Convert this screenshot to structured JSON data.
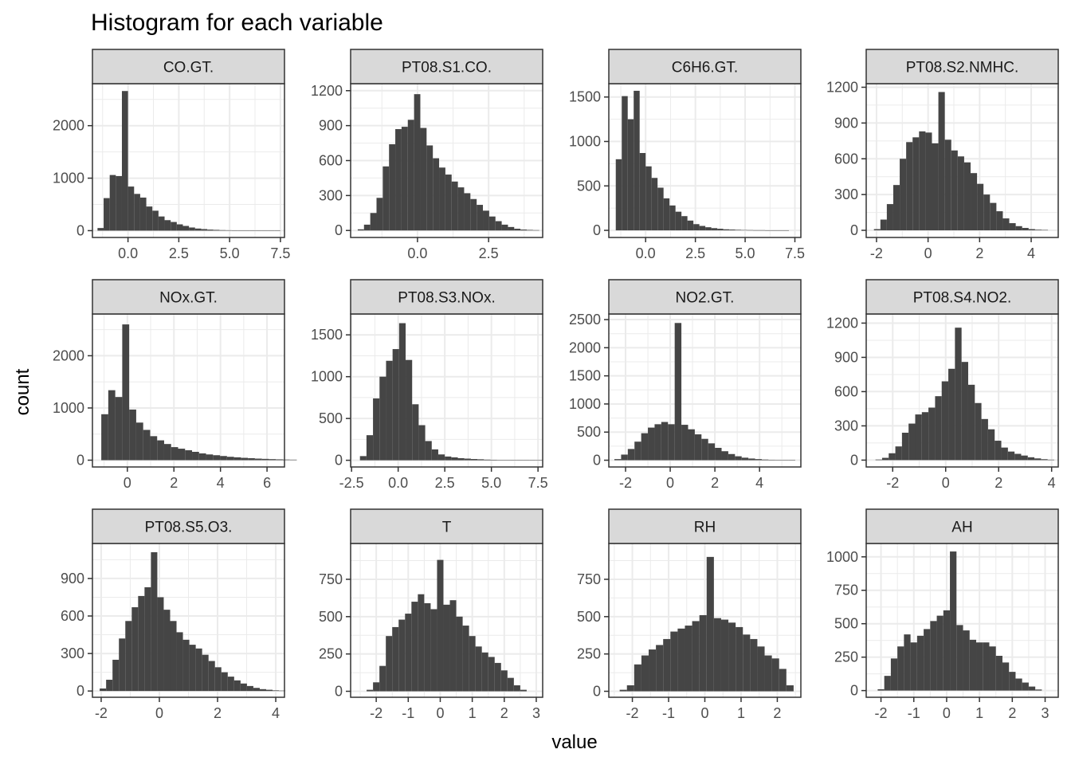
{
  "title": "Histogram for each variable",
  "xlabel": "value",
  "ylabel": "count",
  "chart_data": {
    "type": "histogram-facets",
    "ncol": 4,
    "bar_color": "#454545",
    "strip_fill": "#d9d9d9",
    "grid_color": "#ebebeb",
    "panel_border_color": "#333333",
    "panels": [
      {
        "name": "CO.GT.",
        "xlim": [
          -1.75,
          7.7
        ],
        "ylim": [
          -130,
          2800
        ],
        "xticks": [
          0,
          2.5,
          5,
          7.5
        ],
        "xtick_labels": [
          "0.0",
          "2.5",
          "5.0",
          "7.5"
        ],
        "yticks": [
          0,
          1000,
          2000
        ],
        "ytick_labels": [
          "0",
          "1000",
          "2000"
        ],
        "bin_start": -1.5,
        "binwidth": 0.3,
        "counts": [
          50,
          620,
          1060,
          1040,
          2660,
          840,
          700,
          630,
          460,
          380,
          270,
          200,
          165,
          120,
          90,
          60,
          40,
          30,
          20,
          15,
          10,
          8,
          6,
          5,
          4,
          3,
          2,
          2,
          1,
          1
        ]
      },
      {
        "name": "PT08.S1.CO.",
        "xlim": [
          -2.35,
          4.4
        ],
        "ylim": [
          -60,
          1260
        ],
        "xticks": [
          0,
          2.5
        ],
        "xtick_labels": [
          "0.0",
          "2.5"
        ],
        "yticks": [
          0,
          300,
          600,
          900,
          1200
        ],
        "ytick_labels": [
          "0",
          "300",
          "600",
          "900",
          "1200"
        ],
        "bin_start": -2.1,
        "binwidth": 0.22,
        "counts": [
          10,
          50,
          150,
          280,
          550,
          740,
          870,
          890,
          950,
          1170,
          880,
          730,
          620,
          540,
          480,
          420,
          370,
          320,
          270,
          220,
          170,
          120,
          80,
          50,
          30,
          15,
          8,
          5,
          3
        ]
      },
      {
        "name": "C6H6.GT.",
        "xlim": [
          -1.85,
          7.8
        ],
        "ylim": [
          -80,
          1650
        ],
        "xticks": [
          0,
          2.5,
          5,
          7.5
        ],
        "xtick_labels": [
          "0.0",
          "2.5",
          "5.0",
          "7.5"
        ],
        "yticks": [
          0,
          500,
          1000,
          1500
        ],
        "ytick_labels": [
          "0",
          "500",
          "1000",
          "1500"
        ],
        "bin_start": -1.5,
        "binwidth": 0.3,
        "counts": [
          800,
          1510,
          1250,
          1570,
          870,
          720,
          590,
          480,
          360,
          280,
          210,
          160,
          110,
          70,
          50,
          35,
          25,
          18,
          12,
          9,
          6,
          4,
          3,
          2,
          2,
          1,
          1,
          1,
          1,
          0
        ]
      },
      {
        "name": "PT08.S2.NMHC.",
        "xlim": [
          -2.4,
          5.05
        ],
        "ylim": [
          -60,
          1230
        ],
        "xticks": [
          -2,
          0,
          2,
          4
        ],
        "xtick_labels": [
          "-2",
          "0",
          "2",
          "4"
        ],
        "yticks": [
          0,
          300,
          600,
          900,
          1200
        ],
        "ytick_labels": [
          "0",
          "300",
          "600",
          "900",
          "1200"
        ],
        "bin_start": -2.1,
        "binwidth": 0.25,
        "counts": [
          10,
          90,
          220,
          380,
          600,
          740,
          780,
          830,
          820,
          730,
          1160,
          760,
          670,
          620,
          570,
          480,
          390,
          300,
          230,
          160,
          100,
          60,
          35,
          20,
          10,
          5,
          3
        ]
      },
      {
        "name": "NOx.GT.",
        "xlim": [
          -1.5,
          6.75
        ],
        "ylim": [
          -130,
          2800
        ],
        "xticks": [
          0,
          2,
          4,
          6
        ],
        "xtick_labels": [
          "0",
          "2",
          "4",
          "6"
        ],
        "yticks": [
          0,
          1000,
          2000
        ],
        "ytick_labels": [
          "0",
          "1000",
          "2000"
        ],
        "bin_start": -1.12,
        "binwidth": 0.3,
        "counts": [
          880,
          1340,
          1210,
          2600,
          970,
          720,
          580,
          460,
          380,
          310,
          250,
          220,
          190,
          160,
          130,
          110,
          95,
          80,
          65,
          55,
          45,
          38,
          30,
          25,
          20,
          16,
          12,
          10
        ]
      },
      {
        "name": "PT08.S3.NOx.",
        "xlim": [
          -2.55,
          7.75
        ],
        "ylim": [
          -80,
          1750
        ],
        "xticks": [
          -2.5,
          0,
          2.5,
          5,
          7.5
        ],
        "xtick_labels": [
          "-2.5",
          "0.0",
          "2.5",
          "5.0",
          "7.5"
        ],
        "yticks": [
          0,
          500,
          1000,
          1500
        ],
        "ytick_labels": [
          "0",
          "500",
          "1000",
          "1500"
        ],
        "bin_start": -2.05,
        "binwidth": 0.35,
        "counts": [
          50,
          300,
          740,
          1000,
          1190,
          1330,
          1640,
          1200,
          670,
          420,
          230,
          130,
          70,
          45,
          35,
          25,
          20,
          15,
          12,
          8,
          6,
          4,
          3,
          3,
          2,
          2,
          1,
          1
        ]
      },
      {
        "name": "NO2.GT.",
        "xlim": [
          -2.75,
          5.85
        ],
        "ylim": [
          -120,
          2600
        ],
        "xticks": [
          -2,
          0,
          2,
          4
        ],
        "xtick_labels": [
          "-2",
          "0",
          "2",
          "4"
        ],
        "yticks": [
          0,
          500,
          1000,
          1500,
          2000,
          2500
        ],
        "ytick_labels": [
          "0",
          "500",
          "1000",
          "1500",
          "2000",
          "2500"
        ],
        "bin_start": -2.5,
        "binwidth": 0.3,
        "counts": [
          20,
          100,
          200,
          330,
          480,
          580,
          640,
          680,
          640,
          2440,
          630,
          550,
          460,
          380,
          300,
          220,
          160,
          110,
          70,
          45,
          30,
          20,
          12,
          8,
          5,
          3,
          2
        ]
      },
      {
        "name": "PT08.S4.NO2.",
        "xlim": [
          -3.0,
          4.25
        ],
        "ylim": [
          -60,
          1280
        ],
        "xticks": [
          -2,
          0,
          2,
          4
        ],
        "xtick_labels": [
          "-2",
          "0",
          "2",
          "4"
        ],
        "yticks": [
          0,
          300,
          600,
          900,
          1200
        ],
        "ytick_labels": [
          "0",
          "300",
          "600",
          "900",
          "1200"
        ],
        "bin_start": -2.65,
        "binwidth": 0.25,
        "counts": [
          5,
          20,
          60,
          120,
          240,
          320,
          400,
          420,
          460,
          560,
          690,
          800,
          1160,
          860,
          660,
          500,
          360,
          270,
          170,
          110,
          75,
          55,
          40,
          25,
          15,
          8,
          4
        ]
      },
      {
        "name": "PT08.S5.O3.",
        "xlim": [
          -2.3,
          4.3
        ],
        "ylim": [
          -50,
          1180
        ],
        "xticks": [
          -2,
          0,
          2,
          4
        ],
        "xtick_labels": [
          "-2",
          "0",
          "2",
          "4"
        ],
        "yticks": [
          0,
          300,
          600,
          900
        ],
        "ytick_labels": [
          "0",
          "300",
          "600",
          "900"
        ],
        "bin_start": -2.05,
        "binwidth": 0.22,
        "counts": [
          20,
          90,
          250,
          420,
          560,
          670,
          760,
          830,
          1110,
          750,
          650,
          560,
          470,
          410,
          370,
          340,
          290,
          240,
          190,
          150,
          115,
          85,
          60,
          40,
          25,
          15,
          10,
          5,
          3
        ]
      },
      {
        "name": "T",
        "xlim": [
          -2.8,
          3.2
        ],
        "ylim": [
          -40,
          990
        ],
        "xticks": [
          -2,
          -1,
          0,
          1,
          2,
          3
        ],
        "xtick_labels": [
          "-2",
          "-1",
          "0",
          "1",
          "2",
          "3"
        ],
        "yticks": [
          0,
          250,
          500,
          750
        ],
        "ytick_labels": [
          "0",
          "250",
          "500",
          "750"
        ],
        "bin_start": -2.3,
        "binwidth": 0.2,
        "counts": [
          10,
          60,
          170,
          370,
          430,
          480,
          520,
          600,
          650,
          590,
          550,
          880,
          580,
          610,
          500,
          440,
          370,
          300,
          260,
          230,
          190,
          140,
          90,
          40,
          10
        ]
      },
      {
        "name": "RH",
        "xlim": [
          -2.65,
          2.65
        ],
        "ylim": [
          -40,
          990
        ],
        "xticks": [
          -2,
          -1,
          0,
          1,
          2
        ],
        "xtick_labels": [
          "-2",
          "-1",
          "0",
          "1",
          "2"
        ],
        "yticks": [
          0,
          250,
          500,
          750
        ],
        "ytick_labels": [
          "0",
          "250",
          "500",
          "750"
        ],
        "bin_start": -2.35,
        "binwidth": 0.2,
        "counts": [
          10,
          40,
          180,
          240,
          280,
          310,
          350,
          400,
          420,
          440,
          470,
          510,
          900,
          490,
          480,
          460,
          430,
          380,
          350,
          300,
          240,
          220,
          150,
          40
        ]
      },
      {
        "name": "AH",
        "xlim": [
          -2.45,
          3.4
        ],
        "ylim": [
          -50,
          1100
        ],
        "xticks": [
          -2,
          -1,
          0,
          1,
          2,
          3
        ],
        "xtick_labels": [
          "-2",
          "-1",
          "0",
          "1",
          "2",
          "3"
        ],
        "yticks": [
          0,
          250,
          500,
          750,
          1000
        ],
        "ytick_labels": [
          "0",
          "250",
          "500",
          "750",
          "1000"
        ],
        "bin_start": -2.1,
        "binwidth": 0.2,
        "counts": [
          10,
          110,
          240,
          330,
          420,
          360,
          410,
          460,
          520,
          560,
          600,
          1040,
          490,
          450,
          380,
          360,
          360,
          330,
          260,
          210,
          140,
          90,
          60,
          30,
          8
        ]
      }
    ]
  }
}
